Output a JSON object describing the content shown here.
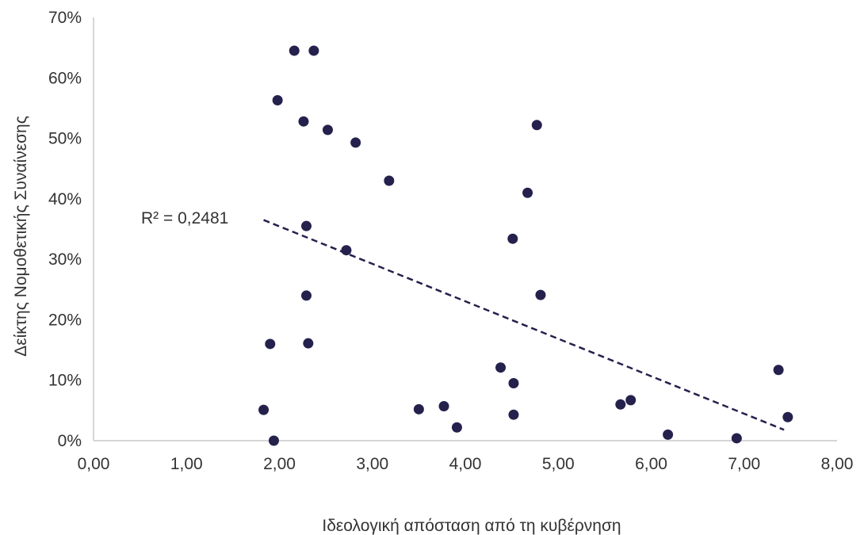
{
  "chart_data": {
    "type": "scatter",
    "title": "",
    "xlabel": "Ιδεολογική απόσταση από τη κυβέρνηση",
    "ylabel": "Δείκτης Νομοθετικής Συναίνεσης",
    "xlim": [
      0,
      8
    ],
    "ylim": [
      0,
      0.7
    ],
    "x_ticks": [
      "0,00",
      "1,00",
      "2,00",
      "3,00",
      "4,00",
      "5,00",
      "6,00",
      "7,00",
      "8,00"
    ],
    "y_ticks": [
      "0%",
      "10%",
      "20%",
      "30%",
      "40%",
      "50%",
      "60%",
      "70%"
    ],
    "grid": false,
    "marker_color": "#25214d",
    "trendline": {
      "type": "linear",
      "style": "dashed",
      "color": "#25214d",
      "x_range": [
        1.83,
        7.43
      ],
      "y_start": 0.365,
      "y_end": 0.018,
      "label": "R² = 0,2481"
    },
    "points": [
      {
        "x": 1.83,
        "y": 0.051
      },
      {
        "x": 1.9,
        "y": 0.16
      },
      {
        "x": 1.94,
        "y": 0.0
      },
      {
        "x": 1.98,
        "y": 0.563
      },
      {
        "x": 2.16,
        "y": 0.645
      },
      {
        "x": 2.26,
        "y": 0.528
      },
      {
        "x": 2.29,
        "y": 0.355
      },
      {
        "x": 2.29,
        "y": 0.24
      },
      {
        "x": 2.31,
        "y": 0.161
      },
      {
        "x": 2.37,
        "y": 0.645
      },
      {
        "x": 2.52,
        "y": 0.514
      },
      {
        "x": 2.72,
        "y": 0.315
      },
      {
        "x": 2.82,
        "y": 0.493
      },
      {
        "x": 3.18,
        "y": 0.43
      },
      {
        "x": 3.5,
        "y": 0.052
      },
      {
        "x": 3.77,
        "y": 0.057
      },
      {
        "x": 3.91,
        "y": 0.022
      },
      {
        "x": 4.38,
        "y": 0.121
      },
      {
        "x": 4.51,
        "y": 0.334
      },
      {
        "x": 4.52,
        "y": 0.095
      },
      {
        "x": 4.52,
        "y": 0.043
      },
      {
        "x": 4.67,
        "y": 0.41
      },
      {
        "x": 4.77,
        "y": 0.522
      },
      {
        "x": 4.81,
        "y": 0.241
      },
      {
        "x": 5.67,
        "y": 0.06
      },
      {
        "x": 5.78,
        "y": 0.067
      },
      {
        "x": 6.18,
        "y": 0.01
      },
      {
        "x": 6.92,
        "y": 0.004
      },
      {
        "x": 7.37,
        "y": 0.117
      },
      {
        "x": 7.47,
        "y": 0.039
      }
    ]
  }
}
